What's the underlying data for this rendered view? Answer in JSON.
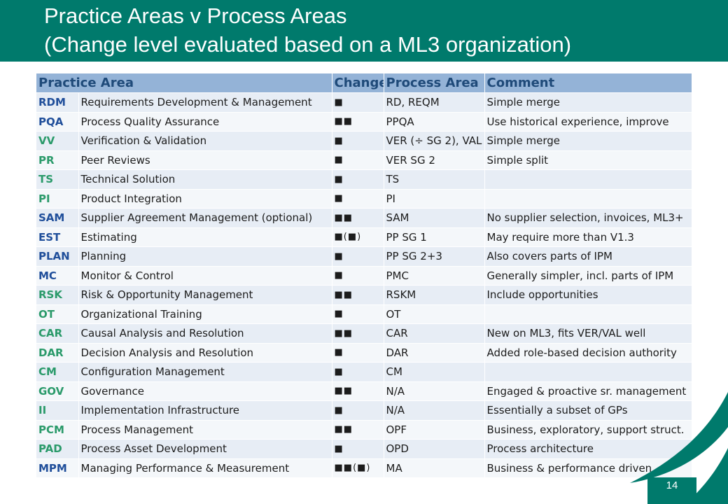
{
  "slide": {
    "title_line1": "Practice Areas v Process Areas",
    "title_line2": "(Change level evaluated based on a ML3 organization)",
    "page_number": "14"
  },
  "table": {
    "headers": [
      "Practice Area",
      "Change",
      "Process Area",
      "Comment"
    ],
    "rows": [
      {
        "code": "RDM",
        "name": "Requirements Development & Management",
        "change": "■",
        "process_area": "RD, REQM",
        "comment": "Simple merge",
        "code_color": "#1f4e9a"
      },
      {
        "code": "PQA",
        "name": "Process Quality Assurance",
        "change": "■■",
        "process_area": "PPQA",
        "comment": "Use historical experience, improve",
        "code_color": "#1f4e9a"
      },
      {
        "code": "VV",
        "name": "Verification & Validation",
        "change": "■",
        "process_area": "VER (÷ SG 2), VAL",
        "comment": "Simple merge",
        "code_color": "#2a9a6a"
      },
      {
        "code": "PR",
        "name": "Peer Reviews",
        "change": "■",
        "process_area": "VER SG 2",
        "comment": "Simple split",
        "code_color": "#2a9a6a"
      },
      {
        "code": "TS",
        "name": "Technical Solution",
        "change": "■",
        "process_area": "TS",
        "comment": "",
        "code_color": "#2a9a6a"
      },
      {
        "code": "PI",
        "name": "Product Integration",
        "change": "■",
        "process_area": "PI",
        "comment": "",
        "code_color": "#2a9a6a"
      },
      {
        "code": "SAM",
        "name": "Supplier Agreement Management (optional)",
        "change": "■■",
        "process_area": "SAM",
        "comment": "No supplier selection, invoices, ML3+",
        "code_color": "#1f4e9a"
      },
      {
        "code": "EST",
        "name": "Estimating",
        "change": "■(■)",
        "process_area": "PP SG 1",
        "comment": "May require more than V1.3",
        "code_color": "#1f4e9a"
      },
      {
        "code": "PLAN",
        "name": "Planning",
        "change": "■",
        "process_area": "PP SG 2+3",
        "comment": "Also covers parts of IPM",
        "code_color": "#1f4e9a"
      },
      {
        "code": "MC",
        "name": "Monitor & Control",
        "change": "■",
        "process_area": "PMC",
        "comment": "Generally simpler, incl. parts of IPM",
        "code_color": "#1f4e9a"
      },
      {
        "code": "RSK",
        "name": "Risk & Opportunity Management",
        "change": "■■",
        "process_area": "RSKM",
        "comment": "Include opportunities",
        "code_color": "#2a9a6a"
      },
      {
        "code": "OT",
        "name": "Organizational Training",
        "change": "■",
        "process_area": "OT",
        "comment": "",
        "code_color": "#2a9a6a"
      },
      {
        "code": "CAR",
        "name": "Causal Analysis and Resolution",
        "change": "■■",
        "process_area": "CAR",
        "comment": "New on ML3, fits VER/VAL well",
        "code_color": "#2a9a6a"
      },
      {
        "code": "DAR",
        "name": "Decision Analysis and Resolution",
        "change": "■",
        "process_area": "DAR",
        "comment": "Added role-based decision authority",
        "code_color": "#2a9a6a"
      },
      {
        "code": "CM",
        "name": "Configuration Management",
        "change": "■",
        "process_area": "CM",
        "comment": "",
        "code_color": "#2a9a6a"
      },
      {
        "code": "GOV",
        "name": "Governance",
        "change": "■■",
        "process_area": "N/A",
        "comment": "Engaged & proactive sr. management",
        "code_color": "#2a9a6a"
      },
      {
        "code": "II",
        "name": "Implementation Infrastructure",
        "change": "■",
        "process_area": "N/A",
        "comment": "Essentially a subset of GPs",
        "code_color": "#2a9a6a"
      },
      {
        "code": "PCM",
        "name": "Process Management",
        "change": "■■",
        "process_area": "OPF",
        "comment": "Business, exploratory, support struct.",
        "code_color": "#2a9a6a"
      },
      {
        "code": "PAD",
        "name": "Process Asset Development",
        "change": "■",
        "process_area": "OPD",
        "comment": "Process architecture",
        "code_color": "#2a9a6a"
      },
      {
        "code": "MPM",
        "name": "Managing Performance & Measurement",
        "change": "■■(■)",
        "process_area": "MA",
        "comment": "Business & performance driven",
        "code_color": "#1f4e9a"
      }
    ]
  },
  "colors": {
    "header_band": "#007a6c",
    "table_header": "#94b3d7"
  }
}
